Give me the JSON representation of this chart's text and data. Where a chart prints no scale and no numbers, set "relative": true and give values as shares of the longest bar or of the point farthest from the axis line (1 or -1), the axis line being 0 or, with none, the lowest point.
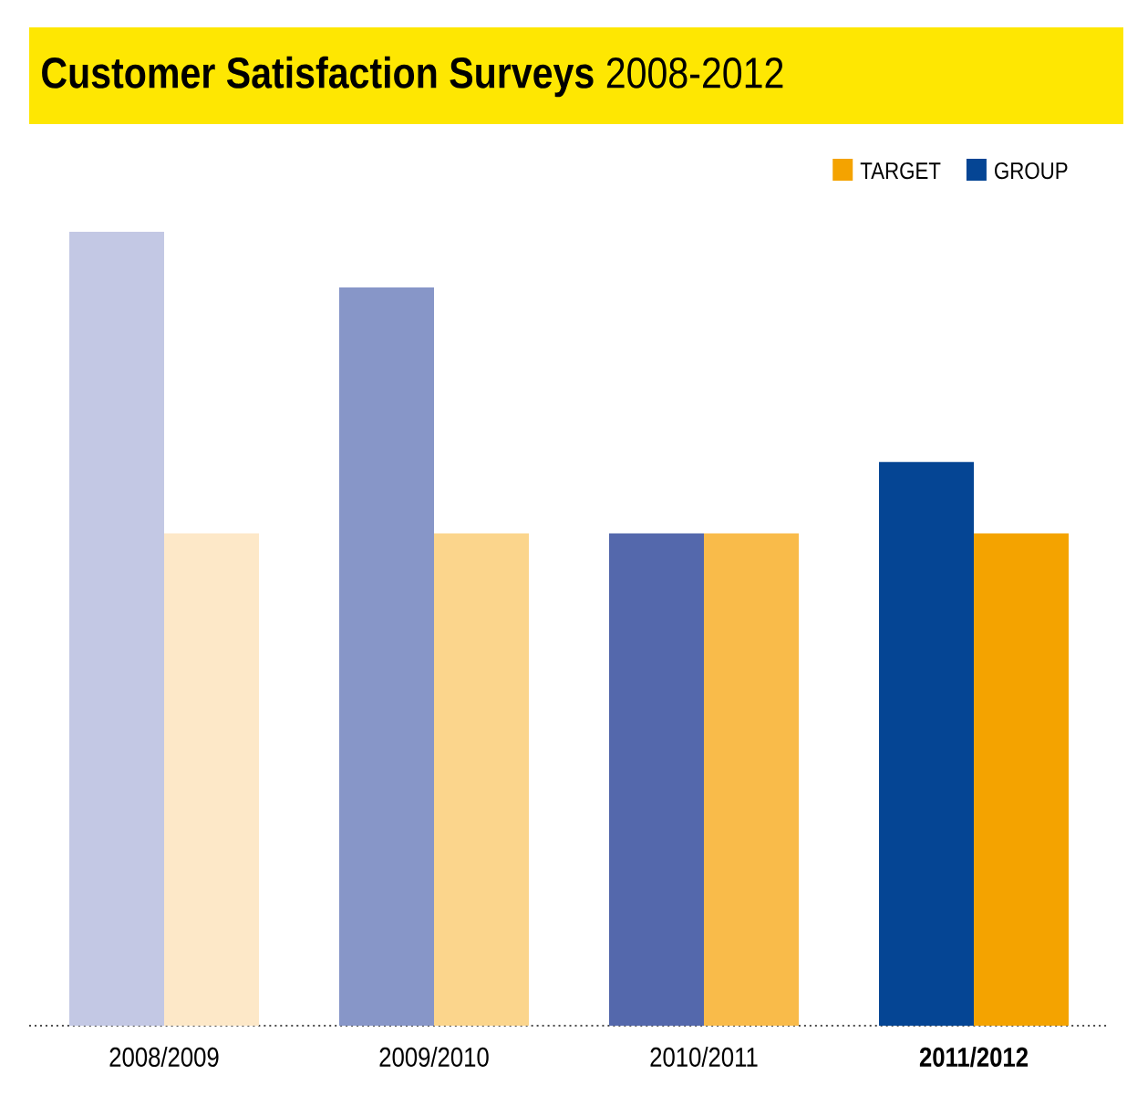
{
  "chart_data": {
    "type": "bar",
    "title": "**Customer Satisfaction Surveys** 2008-2012",
    "relative": true,
    "legend": "top right",
    "categories": [
      "2008/2009",
      "2009/2010",
      "2010/2011",
      "**2011/2012**"
    ],
    "series": [
      {
        "name": "GROUP",
        "color": "#054594",
        "colors": [
          "#c3c8e4",
          "#8796c8",
          "#5468ac",
          "#054594"
        ],
        "values": [
          1,
          0.93,
          0.62,
          0.71
        ]
      },
      {
        "name": "TARGET",
        "color": "#f4a300",
        "colors": [
          "#fde8c8",
          "#fbd58c",
          "#f9bb4a",
          "#f4a300"
        ],
        "values": [
          0.62,
          0.62,
          0.62,
          0.62
        ]
      }
    ]
  }
}
